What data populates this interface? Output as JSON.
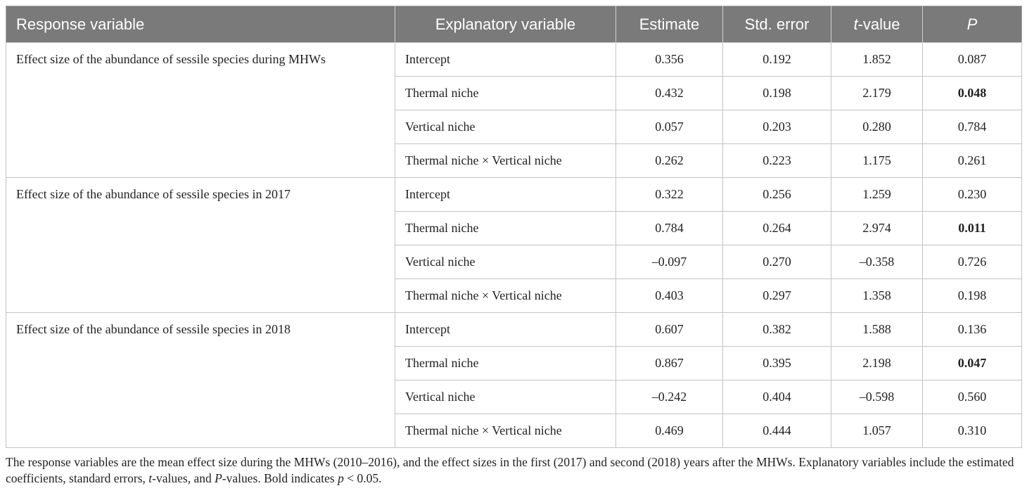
{
  "table": {
    "headers": {
      "response": "Response variable",
      "explanatory": "Explanatory variable",
      "estimate": "Estimate",
      "std_error": "Std. error",
      "t_value_italic": "t",
      "t_value_suffix": "-value",
      "p": "P"
    },
    "groups": [
      {
        "response": "Effect size of the abundance of sessile species during MHWs",
        "rows": [
          {
            "explanatory": "Intercept",
            "estimate": "0.356",
            "std_error": "0.192",
            "t_value": "1.852",
            "p": "0.087",
            "significant": false
          },
          {
            "explanatory": "Thermal niche",
            "estimate": "0.432",
            "std_error": "0.198",
            "t_value": "2.179",
            "p": "0.048",
            "significant": true
          },
          {
            "explanatory": "Vertical niche",
            "estimate": "0.057",
            "std_error": "0.203",
            "t_value": "0.280",
            "p": "0.784",
            "significant": false
          },
          {
            "explanatory": "Thermal niche × Vertical niche",
            "estimate": "0.262",
            "std_error": "0.223",
            "t_value": "1.175",
            "p": "0.261",
            "significant": false
          }
        ]
      },
      {
        "response": "Effect size of the abundance of sessile species in 2017",
        "rows": [
          {
            "explanatory": "Intercept",
            "estimate": "0.322",
            "std_error": "0.256",
            "t_value": "1.259",
            "p": "0.230",
            "significant": false
          },
          {
            "explanatory": "Thermal niche",
            "estimate": "0.784",
            "std_error": "0.264",
            "t_value": "2.974",
            "p": "0.011",
            "significant": true
          },
          {
            "explanatory": "Vertical niche",
            "estimate": "–0.097",
            "std_error": "0.270",
            "t_value": "–0.358",
            "p": "0.726",
            "significant": false
          },
          {
            "explanatory": "Thermal niche × Vertical niche",
            "estimate": "0.403",
            "std_error": "0.297",
            "t_value": "1.358",
            "p": "0.198",
            "significant": false
          }
        ]
      },
      {
        "response": "Effect size of the abundance of sessile species in 2018",
        "rows": [
          {
            "explanatory": "Intercept",
            "estimate": "0.607",
            "std_error": "0.382",
            "t_value": "1.588",
            "p": "0.136",
            "significant": false
          },
          {
            "explanatory": "Thermal niche",
            "estimate": "0.867",
            "std_error": "0.395",
            "t_value": "2.198",
            "p": "0.047",
            "significant": true
          },
          {
            "explanatory": "Vertical niche",
            "estimate": "–0.242",
            "std_error": "0.404",
            "t_value": "–0.598",
            "p": "0.560",
            "significant": false
          },
          {
            "explanatory": "Thermal niche × Vertical niche",
            "estimate": "0.469",
            "std_error": "0.444",
            "t_value": "1.057",
            "p": "0.310",
            "significant": false
          }
        ]
      }
    ]
  },
  "footnote": {
    "part1": "The response variables are the mean effect size during the MHWs (2010–2016), and the effect sizes in the first (2017) and second (2018) years after the MHWs. Explanatory variables include the estimated coefficients, standard errors, ",
    "t_italic": "t",
    "part2": "-values, and ",
    "p_italic": "P",
    "part3": "-values. Bold indicates ",
    "p_lower_italic": "p",
    "part4": " < 0.05."
  },
  "colors": {
    "header_bg": "#7a7a7a",
    "header_text": "#ffffff",
    "border": "#c4c4c4"
  }
}
